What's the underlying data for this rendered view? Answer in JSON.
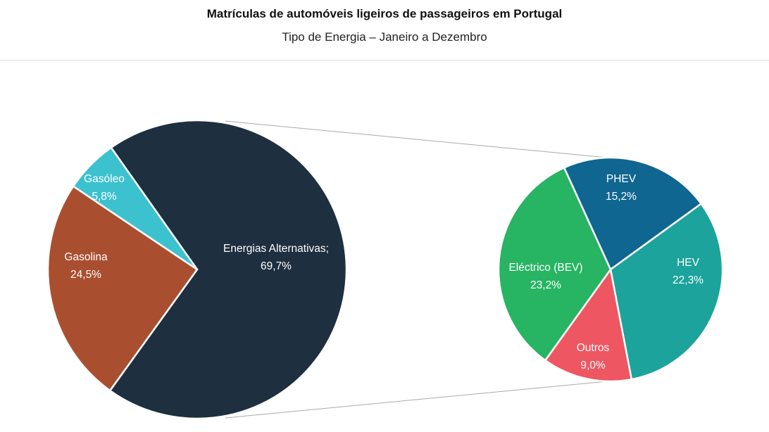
{
  "chart_data": {
    "type": "pie",
    "subtype": "pie-of-pie",
    "title": "Matrículas de automóveis ligeiros de passageiros em Portugal",
    "subtitle": "Tipo de Energia – Janeiro a Dezembro",
    "unit": "%",
    "main_pie": [
      {
        "name": "Energias Alternativas;",
        "value": 69.7,
        "label": "69,7%",
        "color": "#1e2f3f"
      },
      {
        "name": "Gasolina",
        "value": 24.5,
        "label": "24,5%",
        "color": "#a94f30"
      },
      {
        "name": "Gasóleo",
        "value": 5.8,
        "label": "5,8%",
        "color": "#3cc1cf"
      }
    ],
    "secondary_pie": [
      {
        "name": "PHEV",
        "value": 15.2,
        "label": "15,2%",
        "color": "#0f6690"
      },
      {
        "name": "HEV",
        "value": 22.3,
        "label": "22,3%",
        "color": "#1ca39b"
      },
      {
        "name": "Outros",
        "value": 9.0,
        "label": "9,0%",
        "color": "#ee5662"
      },
      {
        "name": "Eléctrico (BEV)",
        "value": 23.2,
        "label": "23,2%",
        "color": "#27b463"
      }
    ],
    "connector_color": "#aaaaaa"
  }
}
